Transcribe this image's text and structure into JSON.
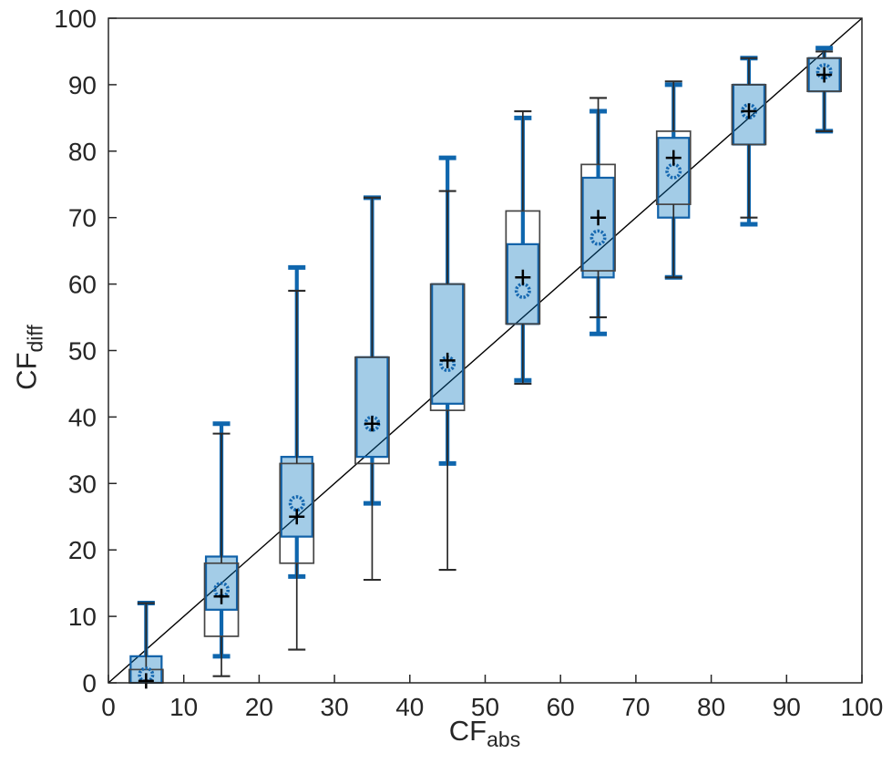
{
  "chart_data": {
    "type": "boxplot",
    "xlabel_main": "CF",
    "xlabel_sub": "abs",
    "ylabel_main": "CF",
    "ylabel_sub": "diff",
    "xlim": [
      0,
      100
    ],
    "ylim": [
      0,
      100
    ],
    "x_ticks": [
      0,
      10,
      20,
      30,
      40,
      50,
      60,
      70,
      80,
      90,
      100
    ],
    "y_ticks": [
      0,
      10,
      20,
      30,
      40,
      50,
      60,
      70,
      80,
      90,
      100
    ],
    "x_tick_labels": [
      "0",
      "10",
      "20",
      "30",
      "40",
      "50",
      "60",
      "70",
      "80",
      "90",
      "100"
    ],
    "y_tick_labels": [
      "0",
      "10",
      "20",
      "30",
      "40",
      "50",
      "60",
      "70",
      "80",
      "90",
      "100"
    ],
    "grid": false,
    "legend": "none",
    "reference_line": {
      "x": [
        0,
        100
      ],
      "y": [
        0,
        100
      ],
      "color": "#000000"
    },
    "colors": {
      "blue_edge": "#1061a8",
      "blue_fill": "rgba(0,114,189,0.36)",
      "blue_cap": "#0f66ad",
      "open_edge": "#454545",
      "open_whisker": "#2b2b2b",
      "plus_marker": "#000000",
      "circle_marker": "#1668b0",
      "axis": "#262626"
    },
    "series": [
      {
        "name": "filled-blue-box",
        "style": "blue-filled",
        "mean_marker": "circle",
        "groups": [
          {
            "x": 5,
            "whisker_low": 0,
            "q1": 0,
            "q3": 4,
            "whisker_high": 12,
            "mean": 1.2
          },
          {
            "x": 15,
            "whisker_low": 4,
            "q1": 11,
            "q3": 19,
            "whisker_high": 39,
            "mean": 14
          },
          {
            "x": 25,
            "whisker_low": 16,
            "q1": 22,
            "q3": 34,
            "whisker_high": 62.5,
            "mean": 27
          },
          {
            "x": 35,
            "whisker_low": 27,
            "q1": 34,
            "q3": 49,
            "whisker_high": 73,
            "mean": 39
          },
          {
            "x": 45,
            "whisker_low": 33,
            "q1": 42,
            "q3": 60,
            "whisker_high": 79,
            "mean": 48
          },
          {
            "x": 55,
            "whisker_low": 45.5,
            "q1": 54,
            "q3": 66,
            "whisker_high": 85,
            "mean": 59
          },
          {
            "x": 65,
            "whisker_low": 52.5,
            "q1": 61,
            "q3": 76,
            "whisker_high": 86,
            "mean": 67
          },
          {
            "x": 75,
            "whisker_low": 61,
            "q1": 70,
            "q3": 82,
            "whisker_high": 90,
            "mean": 77
          },
          {
            "x": 85,
            "whisker_low": 69,
            "q1": 81,
            "q3": 90,
            "whisker_high": 94,
            "mean": 86
          },
          {
            "x": 95,
            "whisker_low": 83,
            "q1": 89,
            "q3": 94,
            "whisker_high": 95.5,
            "mean": 92
          }
        ]
      },
      {
        "name": "open-black-box",
        "style": "black-open",
        "mean_marker": "plus",
        "groups": [
          {
            "x": 5,
            "whisker_low": 0,
            "q1": 0,
            "q3": 2,
            "whisker_high": 12,
            "mean": 0.3
          },
          {
            "x": 15,
            "whisker_low": 1,
            "q1": 7,
            "q3": 18,
            "whisker_high": 37.5,
            "mean": 13
          },
          {
            "x": 25,
            "whisker_low": 5,
            "q1": 18,
            "q3": 33,
            "whisker_high": 59,
            "mean": 25
          },
          {
            "x": 35,
            "whisker_low": 15.5,
            "q1": 33,
            "q3": 49,
            "whisker_high": 73,
            "mean": 39
          },
          {
            "x": 45,
            "whisker_low": 17,
            "q1": 41,
            "q3": 60,
            "whisker_high": 74,
            "mean": 48.5
          },
          {
            "x": 55,
            "whisker_low": 45,
            "q1": 54,
            "q3": 71,
            "whisker_high": 86,
            "mean": 61
          },
          {
            "x": 65,
            "whisker_low": 55,
            "q1": 62,
            "q3": 78,
            "whisker_high": 88,
            "mean": 70
          },
          {
            "x": 75,
            "whisker_low": 61,
            "q1": 72,
            "q3": 83,
            "whisker_high": 90.5,
            "mean": 79
          },
          {
            "x": 85,
            "whisker_low": 70,
            "q1": 81,
            "q3": 90,
            "whisker_high": 94,
            "mean": 86
          },
          {
            "x": 95,
            "whisker_low": 83,
            "q1": 89,
            "q3": 94,
            "whisker_high": 95,
            "mean": 91.5
          }
        ]
      }
    ]
  }
}
